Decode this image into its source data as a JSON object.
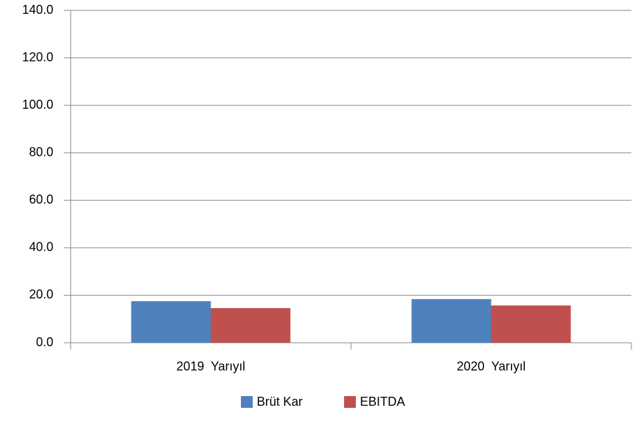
{
  "chart_data": {
    "type": "bar",
    "categories": [
      "2019  Yarıyıl",
      "2020  Yarıyıl"
    ],
    "series": [
      {
        "name": "Brüt Kar",
        "color": "#4f81bd",
        "values": [
          17.5,
          18.4
        ]
      },
      {
        "name": "EBITDA",
        "color": "#c0504d",
        "values": [
          14.6,
          15.7
        ]
      }
    ],
    "ylim": [
      0,
      140
    ],
    "yticks": [
      {
        "value": 0,
        "label": "0.0"
      },
      {
        "value": 20,
        "label": "20.0"
      },
      {
        "value": 40,
        "label": "40.0"
      },
      {
        "value": 60,
        "label": "60.0"
      },
      {
        "value": 80,
        "label": "80.0"
      },
      {
        "value": 100,
        "label": "100.0"
      },
      {
        "value": 120,
        "label": "120.0"
      },
      {
        "value": 140,
        "label": "140.0"
      }
    ],
    "grid": true,
    "legend": "bottom"
  }
}
